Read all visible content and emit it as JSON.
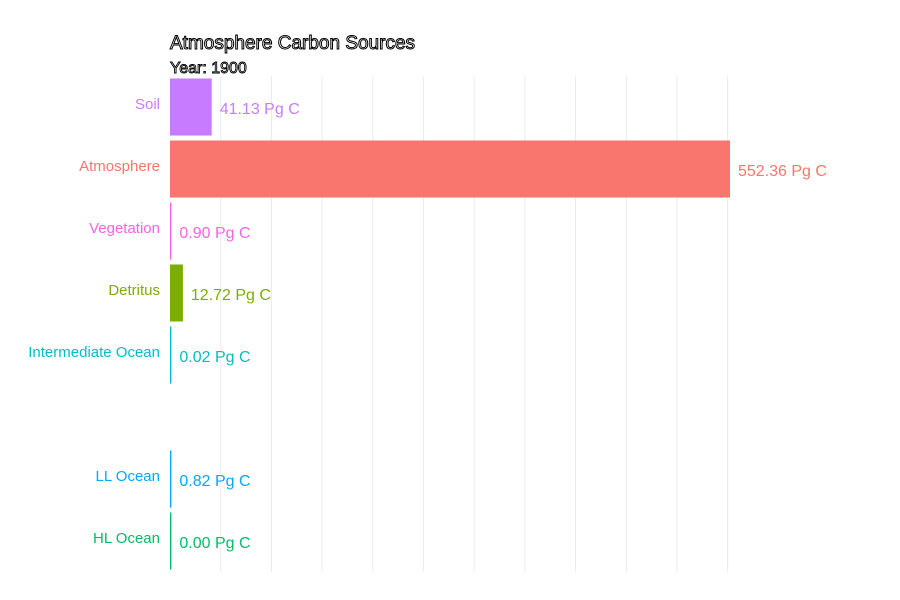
{
  "chart_data": {
    "type": "bar",
    "orientation": "horizontal",
    "title": "Atmosphere Carbon Sources",
    "subtitle": "Year: 1900",
    "xlabel": "",
    "ylabel": "",
    "xlim": [
      0,
      560
    ],
    "grid": true,
    "legend": "none",
    "unit": "Pg C",
    "categories": [
      "Soil",
      "Atmosphere",
      "Vegetation",
      "Detritus",
      "Intermediate Ocean",
      "",
      "LL Ocean",
      "HL Ocean"
    ],
    "values": [
      41.13,
      552.36,
      0.9,
      12.72,
      0.02,
      null,
      0.82,
      0.0
    ],
    "value_labels": [
      "41.13 Pg C",
      "552.36 Pg C",
      "0.90 Pg C",
      "12.72 Pg C",
      "0.02 Pg C",
      "",
      "0.82 Pg C",
      "0.00 Pg C"
    ],
    "colors": [
      "#C77CFF",
      "#F8766D",
      "#F564E3",
      "#7CAE00",
      "#00BFC4",
      "#FFFFFF",
      "#00A9FF",
      "#00BE67"
    ]
  }
}
